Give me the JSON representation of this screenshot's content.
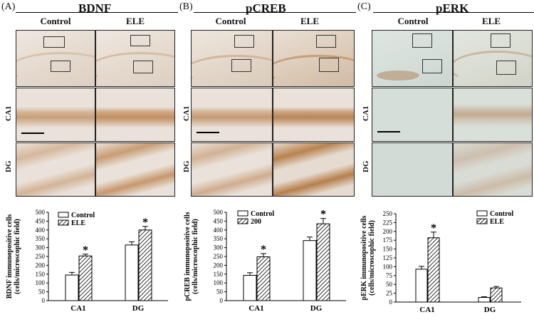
{
  "colors": {
    "tan_bg": "#e7ddd4",
    "tan_stain": "#c79a70",
    "tan_dark": "#a56e3e",
    "green_bg": "#d7dfda",
    "green_stain": "#b89a7a"
  },
  "panels": [
    {
      "letter": "(A)",
      "title": "BDNF",
      "col_labels": [
        "Control",
        "ELE"
      ],
      "row_labels": [
        "CA1",
        "DG"
      ],
      "tissue": "tan"
    },
    {
      "letter": "(B)",
      "title": "pCREB",
      "col_labels": [
        "Control",
        "ELE"
      ],
      "row_labels": [
        "CA1",
        "DG"
      ],
      "tissue": "tan"
    },
    {
      "letter": "(C)",
      "title": "pERK",
      "col_labels": [
        "Control",
        "ELE"
      ],
      "row_labels": [
        "CA1",
        "DG"
      ],
      "tissue": "green"
    }
  ],
  "chart_data": [
    {
      "type": "bar",
      "ylabel_line1": "BDNF immunopositive cells",
      "ylabel_line2": "(cells/microscophic field)",
      "categories": [
        "CA1",
        "DG"
      ],
      "yticks": [
        "0",
        "50",
        "100",
        "150",
        "200",
        "250",
        "300",
        "350",
        "400",
        "450",
        "500"
      ],
      "ylim": [
        0,
        500
      ],
      "legend_position": "top-left",
      "series": [
        {
          "name": "Control",
          "pattern": "open",
          "values": [
            145,
            315
          ],
          "errors": [
            15,
            18
          ]
        },
        {
          "name": "ELE",
          "pattern": "hatched",
          "values": [
            253,
            400
          ],
          "errors": [
            10,
            20
          ]
        }
      ],
      "significance": [
        {
          "label": "*",
          "series": 1,
          "category": 0
        },
        {
          "label": "*",
          "series": 1,
          "category": 1
        }
      ]
    },
    {
      "type": "bar",
      "ylabel_line1": "pCREB immunopositive cells",
      "ylabel_line2": "(cells/microscophic field)",
      "categories": [
        "CA1",
        "DG"
      ],
      "yticks": [
        "0",
        "50",
        "100",
        "150",
        "200",
        "250",
        "300",
        "350",
        "400",
        "450",
        "500"
      ],
      "ylim": [
        0,
        500
      ],
      "legend_position": "top-left",
      "series": [
        {
          "name": "Control",
          "pattern": "open",
          "values": [
            143,
            340
          ],
          "errors": [
            15,
            20
          ]
        },
        {
          "name": "200",
          "pattern": "hatched",
          "values": [
            248,
            435
          ],
          "errors": [
            18,
            30
          ]
        }
      ],
      "significance": [
        {
          "label": "*",
          "series": 1,
          "category": 0
        },
        {
          "label": "*",
          "series": 1,
          "category": 1
        }
      ]
    },
    {
      "type": "bar",
      "ylabel_line1": "pERK immunopositive cells",
      "ylabel_line2": "(cells/microscophic field)",
      "categories": [
        "CA1",
        "DG"
      ],
      "yticks": [
        "0",
        "25",
        "50",
        "75",
        "100",
        "125",
        "150",
        "175",
        "200",
        "225",
        "250"
      ],
      "ylim": [
        0,
        250
      ],
      "legend_position": "top-right",
      "series": [
        {
          "name": "Control",
          "pattern": "open",
          "values": [
            93,
            13
          ],
          "errors": [
            8,
            2
          ]
        },
        {
          "name": "ELE",
          "pattern": "hatched",
          "values": [
            182,
            40
          ],
          "errors": [
            16,
            4
          ]
        }
      ],
      "significance": [
        {
          "label": "*",
          "series": 1,
          "category": 0
        }
      ]
    }
  ]
}
